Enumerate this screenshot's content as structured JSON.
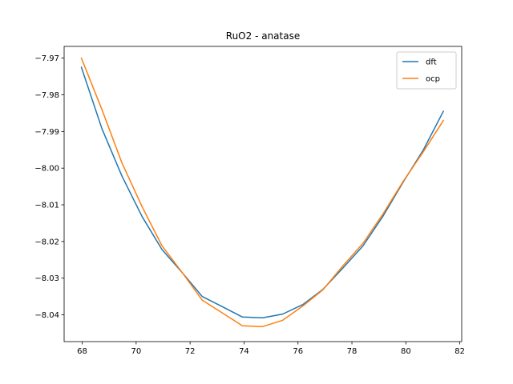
{
  "chart_data": {
    "type": "line",
    "title": "RuO2 - anatase",
    "xlabel": "",
    "ylabel": "",
    "xlim": [
      67.33,
      82.07
    ],
    "ylim": [
      -8.0473,
      -7.9668
    ],
    "xticks": [
      68,
      70,
      72,
      74,
      76,
      78,
      80,
      82
    ],
    "xtick_labels": [
      "68",
      "70",
      "72",
      "74",
      "76",
      "78",
      "80",
      "82"
    ],
    "yticks": [
      -7.97,
      -7.98,
      -7.99,
      -8.0,
      -8.01,
      -8.02,
      -8.03,
      -8.04
    ],
    "ytick_labels": [
      "−7.97",
      "−7.98",
      "−7.99",
      "−8.00",
      "−8.01",
      "−8.02",
      "−8.03",
      "−8.04"
    ],
    "legend_position": "top-right",
    "grid": false,
    "series": [
      {
        "name": "dft",
        "color": "#1f77b4",
        "x": [
          67.97,
          68.73,
          69.47,
          70.22,
          70.96,
          71.71,
          72.45,
          73.2,
          73.94,
          74.69,
          75.43,
          76.18,
          76.92,
          77.67,
          78.41,
          79.16,
          79.9,
          80.65,
          81.39
        ],
        "y": [
          -7.9725,
          -7.9892,
          -8.0021,
          -8.0132,
          -8.0222,
          -8.0285,
          -8.035,
          -8.0378,
          -8.0406,
          -8.0408,
          -8.0398,
          -8.0372,
          -8.0331,
          -8.0272,
          -8.0212,
          -8.013,
          -8.0038,
          -7.995,
          -7.9845
        ]
      },
      {
        "name": "ocp",
        "color": "#ff7f0e",
        "x": [
          67.97,
          68.73,
          69.47,
          70.22,
          70.96,
          71.71,
          72.45,
          73.2,
          73.94,
          74.69,
          75.43,
          76.18,
          76.92,
          77.67,
          78.41,
          79.16,
          79.9,
          80.65,
          81.39
        ],
        "y": [
          -7.97,
          -7.984,
          -7.9985,
          -8.0105,
          -8.0212,
          -8.0285,
          -8.036,
          -8.0395,
          -8.043,
          -8.0432,
          -8.0415,
          -8.0376,
          -8.0332,
          -8.0266,
          -8.0205,
          -8.0124,
          -8.0036,
          -7.9955,
          -7.987
        ]
      }
    ]
  }
}
